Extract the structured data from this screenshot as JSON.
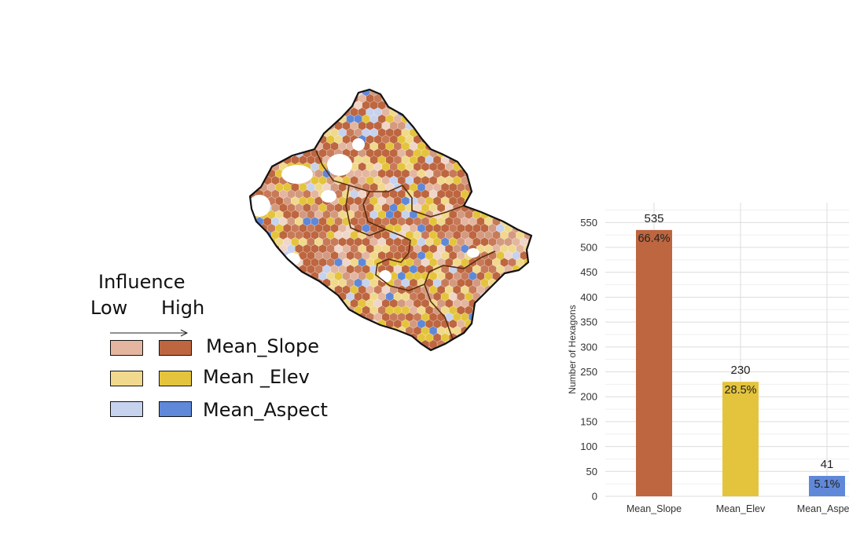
{
  "legend": {
    "title": "Influence",
    "low_label": "Low",
    "high_label": "High",
    "items": [
      {
        "name": "Mean_Slope",
        "low_color": "#e4b6a0",
        "high_color": "#bd6640"
      },
      {
        "name": "Mean _Elev",
        "low_color": "#f0d98c",
        "high_color": "#e4c43c"
      },
      {
        "name": "Mean_Aspect",
        "low_color": "#c6d2ee",
        "high_color": "#6088d8"
      }
    ]
  },
  "map": {
    "hex_colors": [
      "#bd6640",
      "#c87a58",
      "#d49a80",
      "#e4b6a0",
      "#efd6c8",
      "#e4c43c",
      "#f0d98c",
      "#6088d8",
      "#c6d2ee"
    ],
    "outline_color": "#111111",
    "district_border_color": "#5a2d0c"
  },
  "chart_data": {
    "type": "bar",
    "categories": [
      "Mean_Slope",
      "Mean_Elev",
      "Mean_Aspect"
    ],
    "values": [
      535,
      230,
      41
    ],
    "value_labels": [
      "535",
      "230",
      "41"
    ],
    "percent_labels": [
      "66.4%",
      "28.5%",
      "5.1%"
    ],
    "colors": [
      "#bd6640",
      "#e4c43c",
      "#6088d8"
    ],
    "xlabel": "",
    "ylabel": "Number of Hexagons",
    "ylim": [
      0,
      590
    ],
    "yticks": [
      0,
      50,
      100,
      150,
      200,
      250,
      300,
      350,
      400,
      450,
      500,
      550
    ],
    "grid": true
  }
}
